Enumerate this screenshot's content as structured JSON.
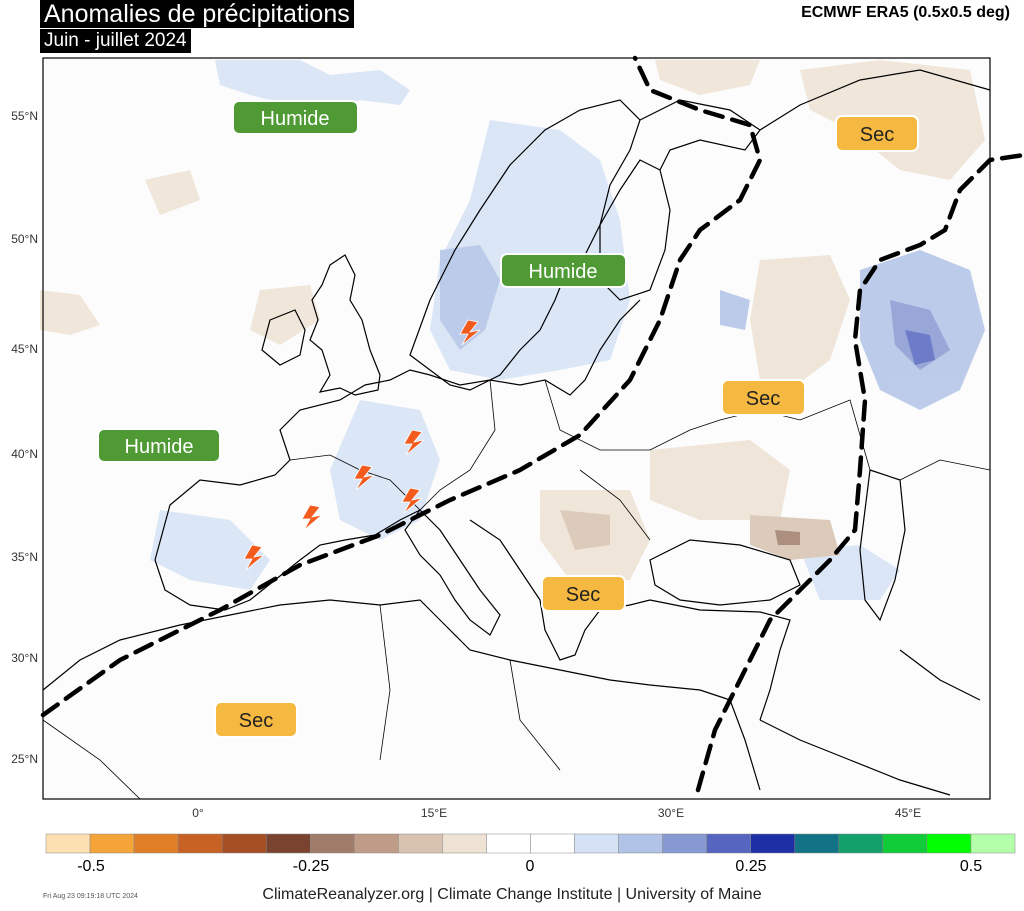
{
  "header": {
    "title": "Anomalies de précipitations",
    "subtitle": "Juin - juillet 2024",
    "source": "ECMWF ERA5 (0.5x0.5 deg)"
  },
  "map": {
    "lat_labels": [
      "55°N",
      "50°N",
      "45°N",
      "40°N",
      "35°N",
      "30°N",
      "25°N"
    ],
    "lon_labels": [
      "0°",
      "15°E",
      "30°E",
      "45°E"
    ],
    "region_labels": [
      {
        "text": "Humide",
        "kind": "wet"
      },
      {
        "text": "Humide",
        "kind": "wet"
      },
      {
        "text": "Humide",
        "kind": "wet"
      },
      {
        "text": "Sec",
        "kind": "dry"
      },
      {
        "text": "Sec",
        "kind": "dry"
      },
      {
        "text": "Sec",
        "kind": "dry"
      },
      {
        "text": "Sec",
        "kind": "dry"
      }
    ],
    "colors": {
      "wet_badge": "#4f9a34",
      "dry_badge": "#f5b941",
      "divider": "#000000"
    }
  },
  "colorbar": {
    "colors": [
      "#fde0b2",
      "#f5a43a",
      "#e07f28",
      "#c76124",
      "#a64f24",
      "#7a4330",
      "#a07c6a",
      "#bf9c88",
      "#d7c3b0",
      "#ede2d4",
      "#ffffff",
      "#ffffff",
      "#d5e2f5",
      "#b1c3e6",
      "#8799d2",
      "#5565c0",
      "#1e2fa6",
      "#137386",
      "#14a06a",
      "#10cc39",
      "#00ff00",
      "#b3ffaa"
    ],
    "ticks": [
      "-0.5",
      "-0.25",
      "0",
      "0.25",
      "0.5"
    ]
  },
  "footer": {
    "credit": "ClimateReanalyzer.org | Climate Change Institute | University of Maine",
    "timestamp": "Fri Aug 23 09:19:18 UTC 2024"
  }
}
